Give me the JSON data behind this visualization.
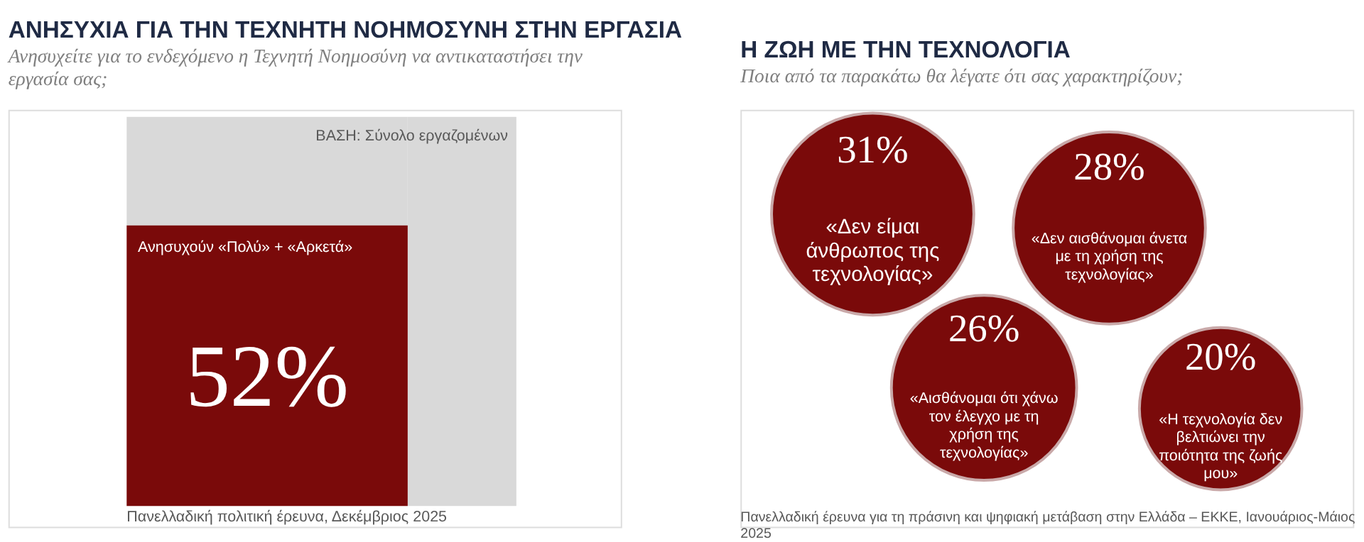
{
  "chart_data": [
    {
      "type": "other",
      "title": "ΑΝΗΣΥΧΙΑ ΓΙΑ ΤΗΝ ΤΕΧΝΗΤΗ ΝΟΗΜΟΣΥΝΗ ΣΤΗΝ ΕΡΓΑΣΙΑ",
      "subtitle": "Ανησυχείτε για το ενδεχόμενο η Τεχνητή Νοημοσύνη να αντικαταστήσει την εργασία σας;",
      "categories": [
        "Ανησυχούν «Πολύ» + «Αρκετά»"
      ],
      "values": [
        52
      ],
      "value_labels": [
        "52%"
      ],
      "colors": [
        "#7a0a0a"
      ],
      "annotations": [
        "ΒΑΣΗ: Σύνολο εργαζομένων",
        "Πανελλαδική πολιτική έρευνα, Δεκέμβριος 2025"
      ]
    },
    {
      "type": "other",
      "title": "Η ΖΩΗ ΜΕ ΤΗΝ ΤΕΧΝΟΛΟΓΙΑ",
      "subtitle": "Ποια από τα παρακάτω θα λέγατε ότι σας χαρακτηρίζουν;",
      "categories": [
        "«Δεν είμαι άνθρωπος της τεχνολογίας»",
        "«Δεν αισθάνομαι άνετα με τη χρήση της τεχνολογίας»",
        "«Αισθάνομαι ότι χάνω τον έλεγχο με τη χρήση της τεχνολογίας»",
        "«Η τεχνολογία δεν βελτιώνει την ποιότητα της ζωής μου»"
      ],
      "values": [
        31,
        28,
        26,
        20
      ],
      "value_labels": [
        "31%",
        "28%",
        "26%",
        "20%"
      ],
      "colors": [
        "#7a0a0a",
        "#7a0a0a",
        "#7a0a0a",
        "#7a0a0a"
      ],
      "annotations": [
        "Πανελλαδική έρευνα για τη πράσινη και ψηφιακή μετάβαση στην Ελλάδα – ΕΚΚΕ, Ιανουάριος-Μάιος 2025"
      ]
    }
  ]
}
